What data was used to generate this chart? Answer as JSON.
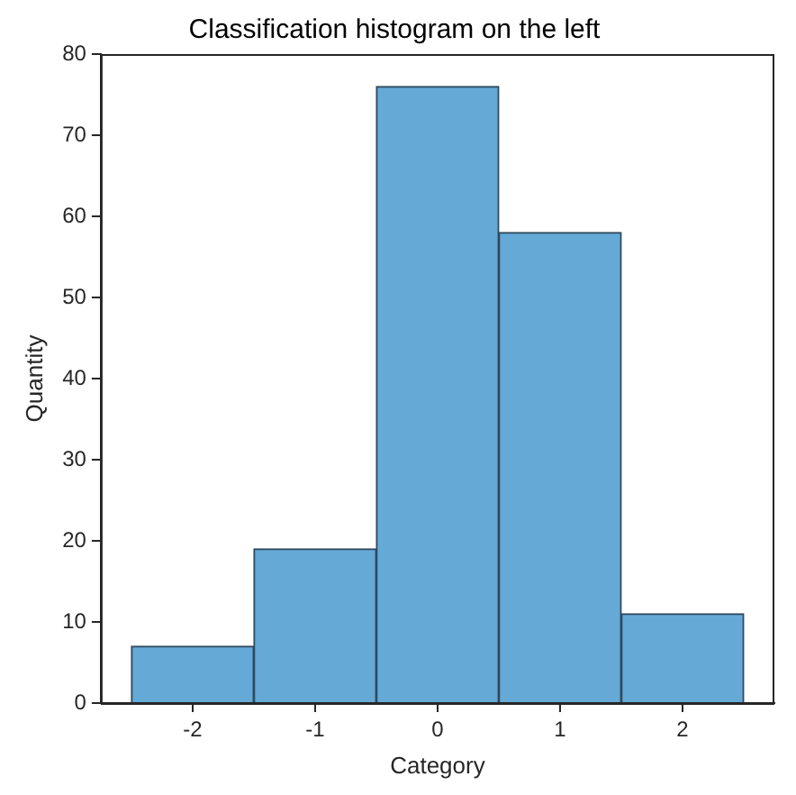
{
  "chart_data": {
    "type": "histogram",
    "title": "Classification histogram on the left",
    "xlabel": "Category",
    "ylabel": "Quantity",
    "bins": [
      -2.5,
      -1.5,
      -0.5,
      0.5,
      1.5,
      2.5
    ],
    "values": [
      7,
      19,
      76,
      58,
      11
    ],
    "color": "#65a9d7",
    "xlim": [
      -2.75,
      2.75
    ],
    "xticks": [
      -2,
      -1,
      0,
      1,
      2
    ],
    "ylim": [
      0,
      80
    ],
    "yticks": [
      0,
      10,
      20,
      30,
      40,
      50,
      60,
      70,
      80
    ],
    "grid": false,
    "legend": false
  }
}
